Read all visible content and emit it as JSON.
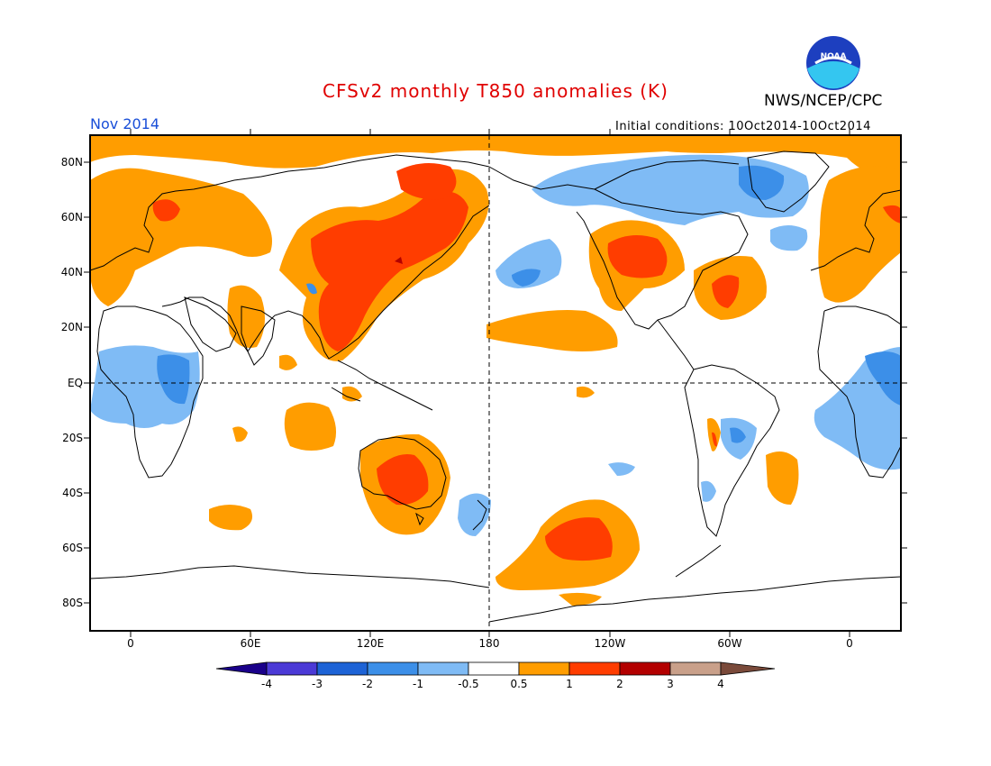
{
  "header": {
    "title": "CFSv2 monthly T850 anomalies (K)",
    "organization": "NWS/NCEP/CPC",
    "logo_text": "NOAA",
    "valid_month": "Nov 2014",
    "initial_conditions": "Initial conditions: 10Oct2014-10Oct2014"
  },
  "colors": {
    "title": "#e00000",
    "month": "#1a4fd8",
    "land_outline": "#000000"
  },
  "axes": {
    "lat_labels": [
      "80N",
      "60N",
      "40N",
      "20N",
      "EQ",
      "20S",
      "40S",
      "60S",
      "80S"
    ],
    "lon_labels": [
      "0",
      "60E",
      "120E",
      "180",
      "120W",
      "60W",
      "0"
    ]
  },
  "colorbar": {
    "ticks": [
      "-4",
      "-3",
      "-2",
      "-1",
      "-0.5",
      "0.5",
      "1",
      "2",
      "3",
      "4"
    ],
    "colors": [
      "#1a008a",
      "#4b3ad6",
      "#1d63d6",
      "#3c8fe8",
      "#7fbbf5",
      "#ffffff",
      "#ff9d00",
      "#ff3d00",
      "#b30000",
      "#c9a08a",
      "#7a4a3a"
    ]
  },
  "anomaly_colors": {
    "warm1": "#ff9d00",
    "warm2": "#ff3d00",
    "warm3": "#b30000",
    "cool1": "#7fbbf5",
    "cool2": "#3c8fe8"
  }
}
